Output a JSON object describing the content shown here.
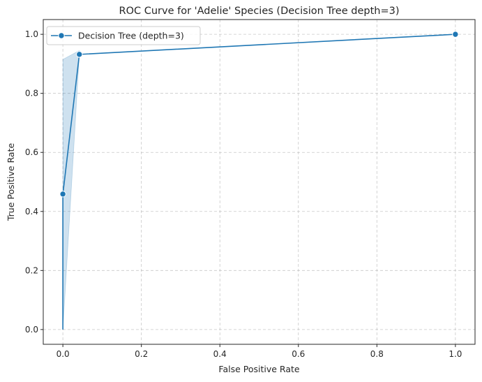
{
  "chart_data": {
    "type": "line",
    "title": "ROC Curve for 'Adelie' Species (Decision Tree depth=3)",
    "xlabel": "False Positive Rate",
    "ylabel": "True Positive Rate",
    "xlim": [
      -0.05,
      1.05
    ],
    "ylim": [
      -0.05,
      1.05
    ],
    "xticks": [
      0.0,
      0.2,
      0.4,
      0.6,
      0.8,
      1.0
    ],
    "xtick_labels": [
      "0.0",
      "0.2",
      "0.4",
      "0.6",
      "0.8",
      "1.0"
    ],
    "yticks": [
      0.0,
      0.2,
      0.4,
      0.6,
      0.8,
      1.0
    ],
    "ytick_labels": [
      "0.0",
      "0.2",
      "0.4",
      "0.6",
      "0.8",
      "1.0"
    ],
    "grid": true,
    "legend_position": "top-left",
    "series": [
      {
        "name": "Decision Tree (depth=3)",
        "color": "#1f77b4",
        "marker": "circle",
        "x": [
          0.0,
          0.0,
          0.042,
          1.0
        ],
        "y": [
          0.0,
          0.459,
          0.932,
          1.0
        ],
        "markers": [
          false,
          true,
          true,
          true
        ],
        "band": {
          "color": "#1f77b4",
          "opacity": 0.22,
          "points": [
            [
              0.0,
              0.0
            ],
            [
              0.0,
              0.915
            ],
            [
              0.042,
              0.945
            ],
            [
              0.042,
              0.932
            ],
            [
              0.0,
              0.0
            ]
          ]
        }
      }
    ]
  }
}
